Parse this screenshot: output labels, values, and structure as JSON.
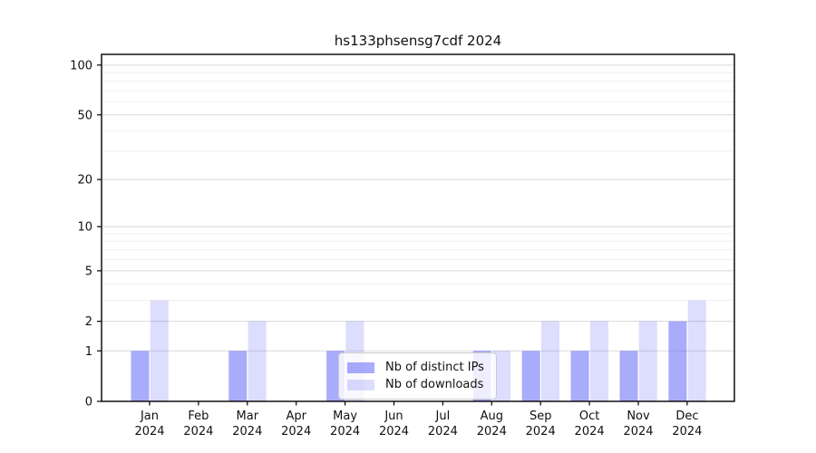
{
  "chart_data": {
    "type": "bar",
    "title": "hs133phsensg7cdf 2024",
    "categories": [
      "Jan",
      "Feb",
      "Mar",
      "Apr",
      "May",
      "Jun",
      "Jul",
      "Aug",
      "Sep",
      "Oct",
      "Nov",
      "Dec"
    ],
    "x_tick_second_line": "2024",
    "series": [
      {
        "name": "Nb of distinct IPs",
        "color": "#6366f7",
        "alpha": 0.55,
        "values": [
          1,
          0,
          1,
          0,
          1,
          0,
          0,
          1,
          1,
          1,
          1,
          2
        ]
      },
      {
        "name": "Nb of downloads",
        "color": "#6366f7",
        "alpha": 0.22,
        "values": [
          3,
          0,
          2,
          0,
          2,
          0,
          0,
          1,
          2,
          2,
          2,
          3
        ]
      }
    ],
    "yscale": "log1p",
    "ylim": [
      0,
      116
    ],
    "y_major_ticks": [
      0,
      1,
      2,
      5,
      10,
      20,
      50,
      100
    ],
    "y_tick_labels": [
      "0",
      "1",
      "2",
      "5",
      "10",
      "20",
      "50",
      "100"
    ],
    "y_minor_gridlines": [
      3,
      4,
      6,
      7,
      8,
      9,
      30,
      40,
      60,
      70,
      80,
      90
    ],
    "grid": true,
    "legend_position": "lower center",
    "colors": {
      "major_grid": "#d9d9d9",
      "minor_grid": "#f0f0f0",
      "spine": "#000000",
      "text": "#111111"
    }
  }
}
